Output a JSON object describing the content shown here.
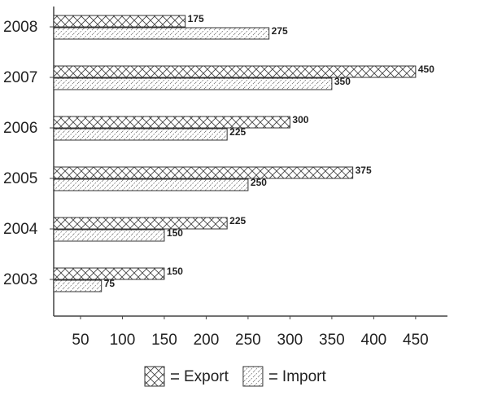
{
  "chart_data": {
    "type": "hbar",
    "categories": [
      "2003",
      "2004",
      "2005",
      "2006",
      "2007",
      "2008"
    ],
    "series": [
      {
        "name": "Export",
        "color": "#333333",
        "pattern": "crosshatch",
        "values": [
          150,
          225,
          375,
          300,
          450,
          175
        ]
      },
      {
        "name": "Import",
        "color": "#333333",
        "pattern": "diagonal",
        "values": [
          75,
          150,
          250,
          225,
          350,
          275
        ]
      }
    ],
    "xlim": [
      18,
      488
    ],
    "xticks": [
      50,
      100,
      150,
      200,
      250,
      300,
      350,
      400,
      450
    ]
  }
}
